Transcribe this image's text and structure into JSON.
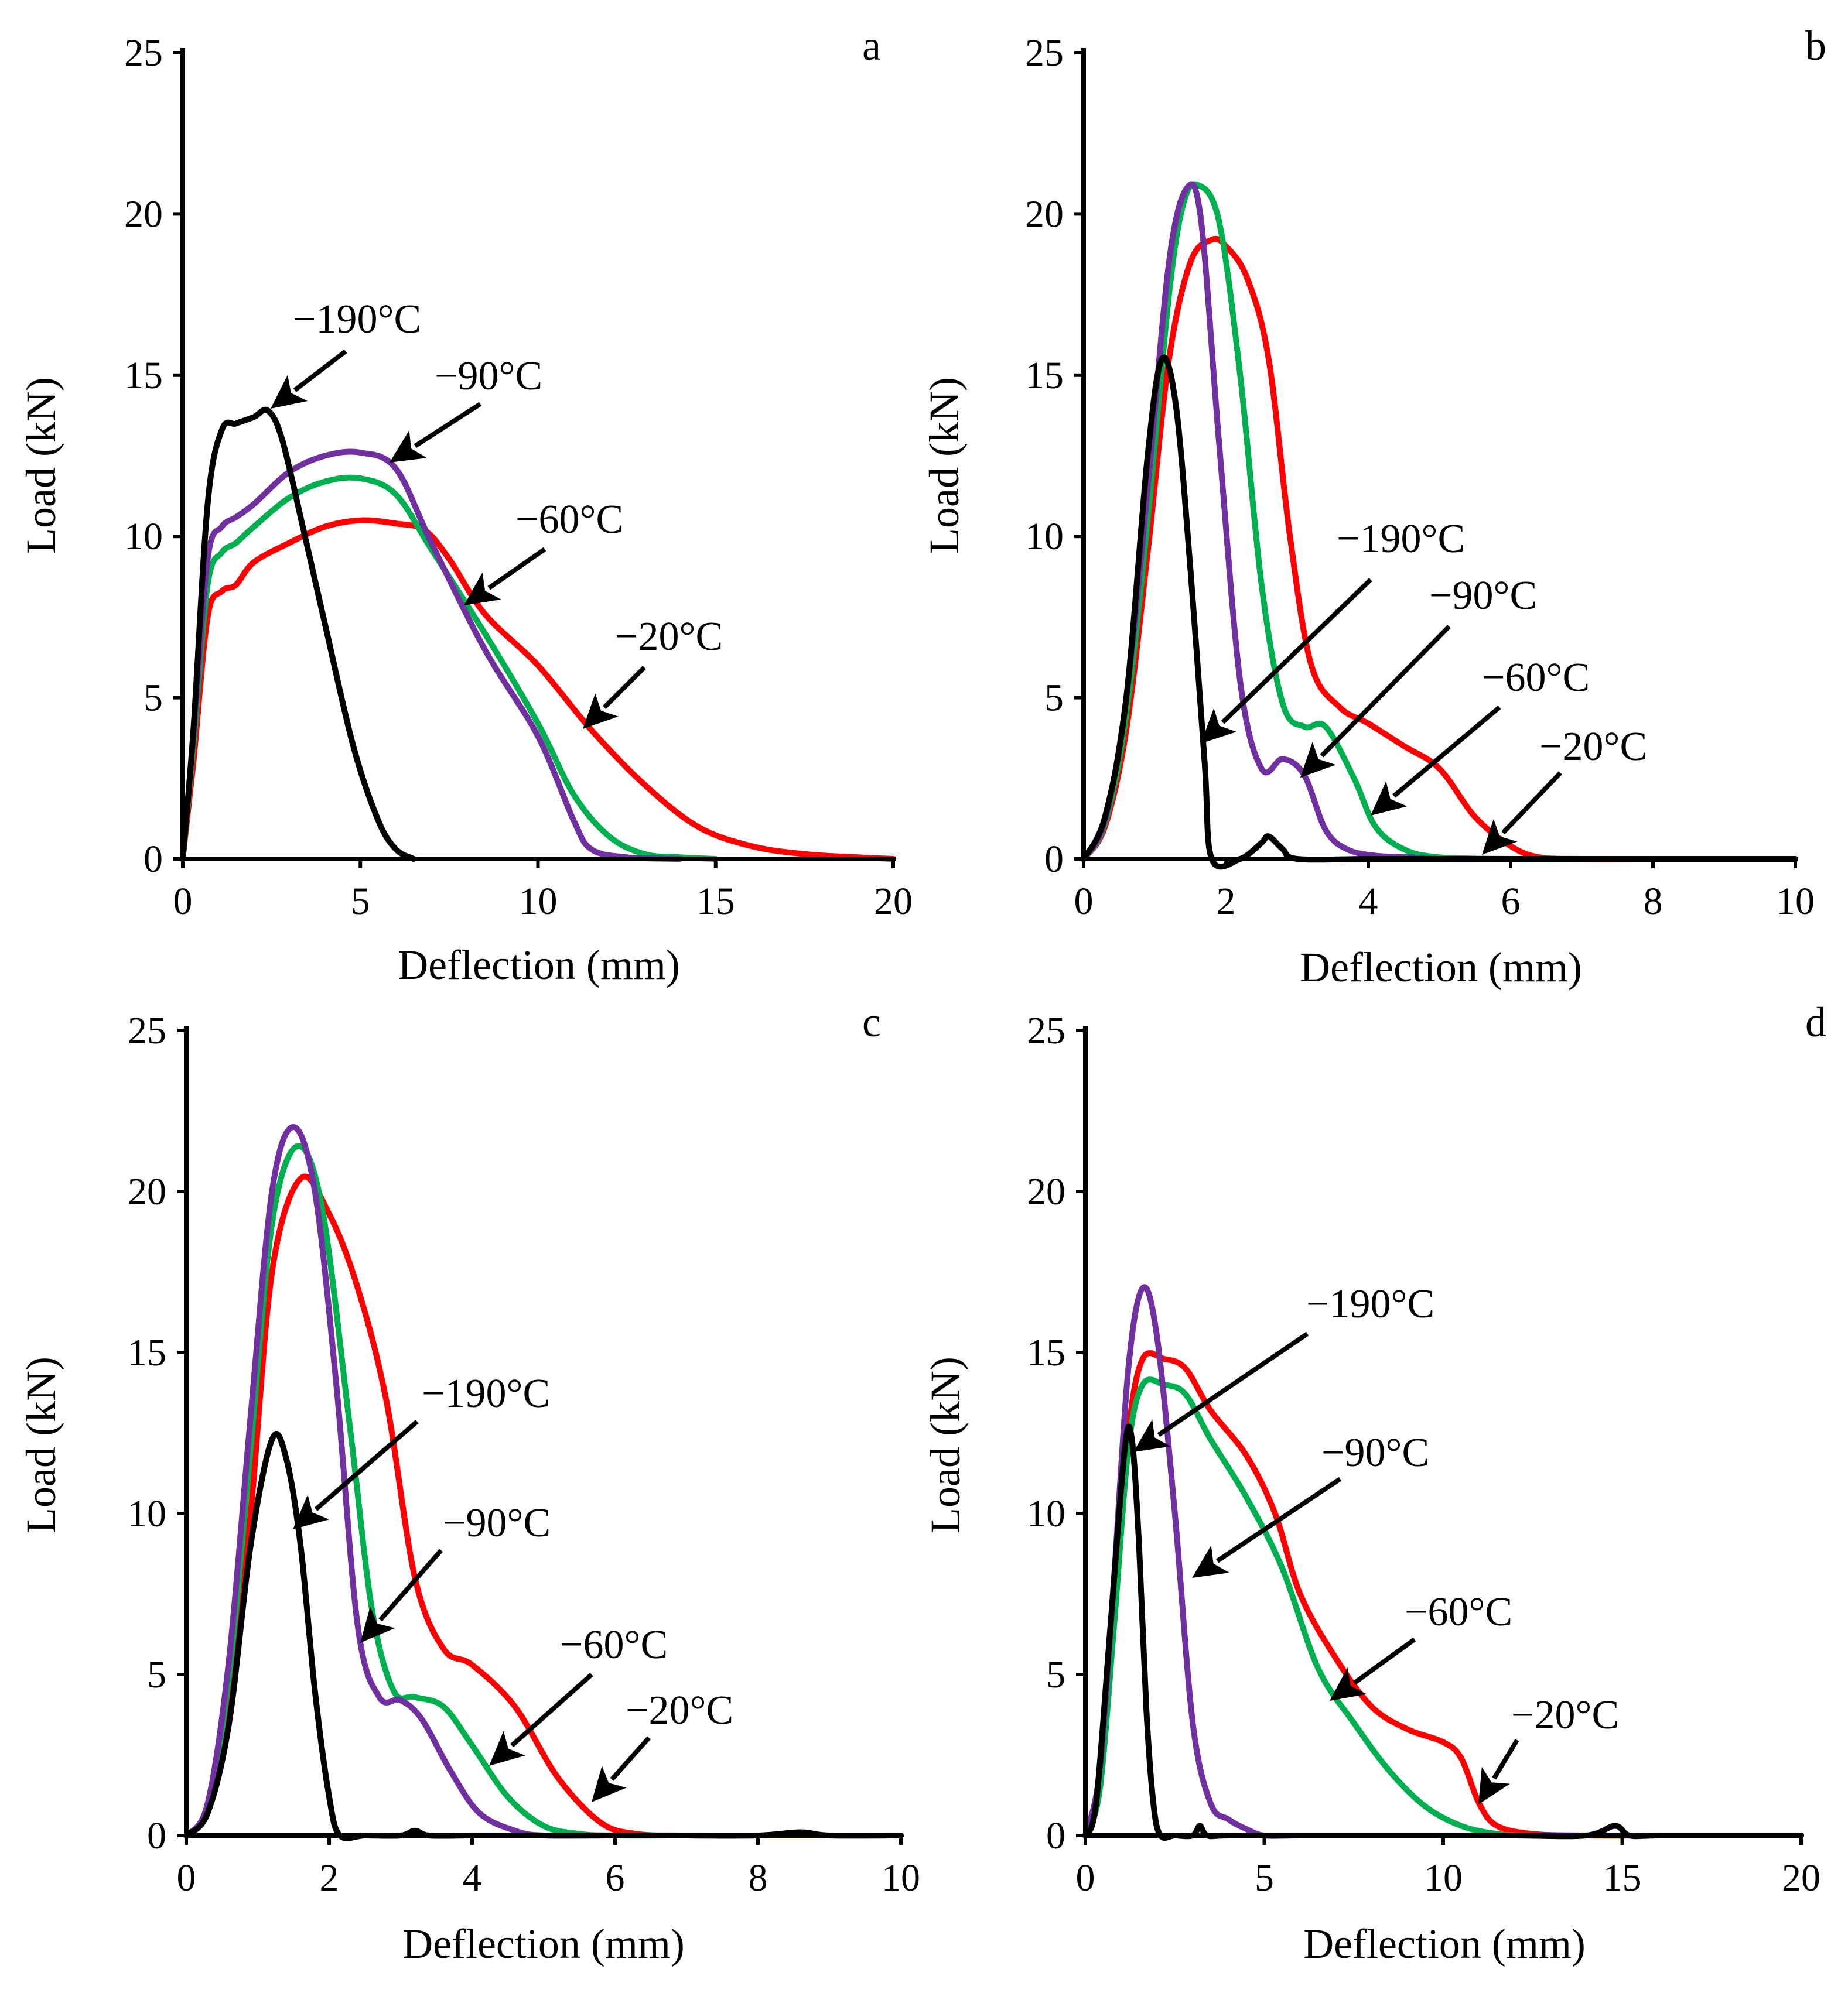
{
  "chart_data": [
    {
      "panel": "a",
      "type": "line",
      "xlabel": "Deflection (mm)",
      "ylabel": "Load (kN)",
      "xlim": [
        0,
        20
      ],
      "ylim": [
        0,
        25
      ],
      "xticks": [
        0,
        5,
        10,
        15,
        20
      ],
      "yticks": [
        0,
        5,
        10,
        15,
        20,
        25
      ],
      "grid": false,
      "series": [
        {
          "name": "−20°C",
          "color": "#ff0000",
          "x": [
            0,
            0.3,
            0.7,
            1.1,
            1.5,
            2,
            3,
            4,
            5,
            6,
            6.8,
            7.5,
            8.5,
            10,
            11.5,
            13,
            14.5,
            16,
            17.5,
            19,
            20
          ],
          "y": [
            0,
            3,
            7.5,
            8.3,
            8.5,
            9.2,
            9.8,
            10.3,
            10.5,
            10.4,
            10.2,
            9.3,
            7.6,
            6,
            4,
            2.3,
            1,
            0.4,
            0.15,
            0.05,
            0
          ]
        },
        {
          "name": "−60°C",
          "color": "#00b050",
          "x": [
            0,
            0.3,
            0.7,
            1.1,
            1.5,
            2,
            3,
            4,
            5,
            6,
            7,
            8.5,
            10,
            11,
            12,
            13,
            14,
            15
          ],
          "y": [
            0,
            3.5,
            8.5,
            9.5,
            9.8,
            10.3,
            11.2,
            11.7,
            11.8,
            11.3,
            9.6,
            7,
            4.2,
            2,
            0.7,
            0.15,
            0.05,
            0
          ]
        },
        {
          "name": "−90°C",
          "color": "#7030a0",
          "x": [
            0,
            0.3,
            0.7,
            1.1,
            1.5,
            2,
            3,
            4,
            5,
            6,
            7,
            8.5,
            10,
            11,
            11.5,
            12.5,
            14
          ],
          "y": [
            0,
            3.8,
            9.3,
            10.3,
            10.6,
            11,
            12,
            12.5,
            12.6,
            12.1,
            9.8,
            6.5,
            3.8,
            1.2,
            0.3,
            0.05,
            0
          ]
        },
        {
          "name": "−190°C",
          "color": "#000000",
          "x": [
            0,
            0.3,
            0.7,
            1.1,
            1.5,
            2,
            2.4,
            2.8,
            3.4,
            4,
            4.8,
            5.5,
            6,
            6.5
          ],
          "y": [
            0,
            4,
            11,
            13.3,
            13.5,
            13.7,
            13.9,
            13,
            10.2,
            7.3,
            3.5,
            1.2,
            0.3,
            0
          ]
        }
      ],
      "annotations": [
        "−190°C",
        "−90°C",
        "−60°C",
        "−20°C"
      ]
    },
    {
      "panel": "b",
      "type": "line",
      "xlabel": "Deflection (mm)",
      "ylabel": "Load (kN)",
      "xlim": [
        0,
        10
      ],
      "ylim": [
        0,
        25
      ],
      "xticks": [
        0,
        2,
        4,
        6,
        8,
        10
      ],
      "yticks": [
        0,
        5,
        10,
        15,
        20,
        25
      ],
      "grid": false,
      "series": [
        {
          "name": "−20°C",
          "color": "#ff0000",
          "x": [
            0,
            0.3,
            0.6,
            0.9,
            1.2,
            1.5,
            1.8,
            2,
            2.3,
            2.6,
            2.9,
            3.2,
            3.6,
            4,
            4.5,
            5,
            5.5,
            6,
            6.4,
            7,
            8,
            9,
            10
          ],
          "y": [
            0,
            1,
            4,
            9.5,
            15.5,
            18.5,
            19.2,
            19,
            18,
            15.5,
            10,
            6,
            4.7,
            4.2,
            3.5,
            2.8,
            1.3,
            0.4,
            0.05,
            0,
            0,
            0,
            0
          ]
        },
        {
          "name": "−60°C",
          "color": "#00b050",
          "x": [
            0,
            0.3,
            0.6,
            0.9,
            1.2,
            1.4,
            1.6,
            1.9,
            2.2,
            2.5,
            2.8,
            3.1,
            3.4,
            3.8,
            4.1,
            4.5,
            5,
            6,
            7,
            8,
            9,
            10
          ],
          "y": [
            0,
            1.1,
            4.5,
            10.5,
            17.5,
            20.3,
            20.9,
            19.8,
            15,
            8.5,
            4.8,
            4.1,
            4.1,
            2.5,
            1,
            0.3,
            0.05,
            0,
            0,
            0,
            0,
            0
          ]
        },
        {
          "name": "−90°C",
          "color": "#7030a0",
          "x": [
            0,
            0.3,
            0.6,
            0.9,
            1.2,
            1.45,
            1.65,
            1.9,
            2.2,
            2.5,
            2.8,
            3.1,
            3.4,
            3.7,
            4.1,
            4.6,
            5,
            6,
            7,
            8,
            9,
            10
          ],
          "y": [
            0,
            1.2,
            5,
            11.5,
            18.5,
            20.8,
            19.8,
            13,
            5.5,
            2.8,
            3.1,
            2.6,
            0.9,
            0.3,
            0.1,
            0.05,
            0,
            0,
            0,
            0,
            0,
            0
          ]
        },
        {
          "name": "−190°C",
          "color": "#000000",
          "x": [
            0,
            0.3,
            0.6,
            0.9,
            1.1,
            1.3,
            1.5,
            1.7,
            1.8,
            2.2,
            2.5,
            2.6,
            2.8,
            3,
            4,
            5,
            6,
            7,
            8,
            9,
            10
          ],
          "y": [
            0,
            1.3,
            5,
            12.5,
            15.5,
            14,
            9,
            3,
            0,
            0,
            0.5,
            0.7,
            0.3,
            0,
            0,
            0,
            0,
            0,
            0,
            0,
            0
          ]
        }
      ],
      "annotations": [
        "−190°C",
        "−90°C",
        "−60°C",
        "−20°C"
      ]
    },
    {
      "panel": "c",
      "type": "line",
      "xlabel": "Deflection (mm)",
      "ylabel": "Load (kN)",
      "xlim": [
        0,
        10
      ],
      "ylim": [
        0,
        25
      ],
      "xticks": [
        0,
        2,
        4,
        6,
        8,
        10
      ],
      "yticks": [
        0,
        5,
        10,
        15,
        20,
        25
      ],
      "grid": false,
      "series": [
        {
          "name": "−20°C",
          "color": "#ff0000",
          "x": [
            0,
            0.3,
            0.6,
            0.9,
            1.2,
            1.6,
            2,
            2.4,
            2.8,
            3.2,
            3.6,
            4,
            4.6,
            5.2,
            5.8,
            6.3,
            7,
            8,
            9,
            10
          ],
          "y": [
            0,
            0.8,
            4,
            10,
            17.5,
            20.4,
            19.3,
            17,
            13.5,
            8,
            5.8,
            5.3,
            4,
            1.8,
            0.4,
            0.05,
            0,
            0,
            0,
            0
          ]
        },
        {
          "name": "−60°C",
          "color": "#00b050",
          "x": [
            0,
            0.3,
            0.6,
            0.9,
            1.2,
            1.55,
            1.9,
            2.3,
            2.6,
            2.9,
            3.2,
            3.6,
            4,
            4.5,
            5,
            5.5,
            6,
            7,
            8,
            9,
            10
          ],
          "y": [
            0,
            0.9,
            5,
            12,
            19,
            21.4,
            19.5,
            12.5,
            7,
            4.5,
            4.3,
            4,
            2.8,
            1.2,
            0.3,
            0.05,
            0,
            0,
            0,
            0,
            0
          ]
        },
        {
          "name": "−90°C",
          "color": "#7030a0",
          "x": [
            0,
            0.3,
            0.6,
            0.9,
            1.2,
            1.5,
            1.8,
            2.1,
            2.4,
            2.7,
            3,
            3.3,
            3.7,
            4.1,
            4.6,
            5,
            6,
            7,
            8,
            9,
            10
          ],
          "y": [
            0,
            1,
            5.5,
            13,
            20,
            22,
            20,
            14,
            6.5,
            4.3,
            4.2,
            3.6,
            2,
            0.7,
            0.15,
            0,
            0,
            0,
            0,
            0,
            0
          ]
        },
        {
          "name": "−190°C",
          "color": "#000000",
          "x": [
            0,
            0.3,
            0.6,
            0.9,
            1.2,
            1.4,
            1.6,
            1.8,
            2,
            2.15,
            2.5,
            3,
            3.2,
            3.4,
            4,
            5,
            6,
            7,
            8,
            8.6,
            9,
            10
          ],
          "y": [
            0,
            0.7,
            3.5,
            9,
            12.3,
            11.7,
            9,
            4.5,
            1.2,
            0,
            0,
            0,
            0.15,
            0,
            0,
            0,
            0,
            0,
            0,
            0.1,
            0,
            0
          ]
        }
      ],
      "annotations": [
        "−190°C",
        "−90°C",
        "−60°C",
        "−20°C"
      ]
    },
    {
      "panel": "d",
      "type": "line",
      "xlabel": "Deflection (mm)",
      "ylabel": "Load (kN)",
      "xlim": [
        0,
        20
      ],
      "ylim": [
        0,
        25
      ],
      "xticks": [
        0,
        5,
        10,
        15,
        20
      ],
      "yticks": [
        0,
        5,
        10,
        15,
        20,
        25
      ],
      "grid": false,
      "series": [
        {
          "name": "−20°C",
          "color": "#ff0000",
          "x": [
            0,
            0.4,
            0.8,
            1.2,
            1.6,
            2.2,
            2.8,
            3.5,
            4.5,
            5.3,
            6,
            7,
            8,
            9,
            10,
            10.5,
            11,
            11.5,
            12.5,
            14,
            16,
            18,
            20
          ],
          "y": [
            0,
            1.5,
            7,
            12.5,
            14.8,
            14.8,
            14.5,
            13.2,
            11.8,
            10,
            7.5,
            5.5,
            4,
            3.3,
            2.9,
            2.4,
            1,
            0.3,
            0.05,
            0,
            0,
            0,
            0
          ]
        },
        {
          "name": "−60°C",
          "color": "#00b050",
          "x": [
            0,
            0.4,
            0.8,
            1.2,
            1.6,
            2.2,
            2.8,
            3.5,
            4.5,
            5.5,
            6.5,
            7.5,
            8.5,
            9.5,
            10.5,
            11.5,
            12.5,
            14,
            16,
            18,
            20
          ],
          "y": [
            0,
            1.4,
            6.5,
            12,
            14,
            14,
            13.7,
            12.3,
            10.5,
            8.3,
            5.2,
            3.5,
            2,
            0.9,
            0.3,
            0.05,
            0,
            0,
            0,
            0,
            0
          ]
        },
        {
          "name": "−90°C",
          "color": "#7030a0",
          "x": [
            0,
            0.4,
            0.8,
            1.2,
            1.6,
            2,
            2.5,
            3,
            3.5,
            4,
            4.5,
            5,
            6,
            8,
            10,
            12,
            14,
            16,
            18,
            20
          ],
          "y": [
            0,
            2,
            8,
            14.5,
            17,
            15.5,
            10,
            3.5,
            1,
            0.5,
            0.2,
            0,
            0,
            0,
            0,
            0,
            0,
            0,
            0,
            0
          ]
        },
        {
          "name": "−190°C",
          "color": "#000000",
          "x": [
            0,
            0.3,
            0.7,
            1.1,
            1.3,
            1.5,
            1.7,
            1.9,
            2.1,
            2.5,
            3,
            3.2,
            3.4,
            4,
            6,
            8,
            10,
            12,
            14,
            14.8,
            15.2,
            16,
            18,
            20
          ],
          "y": [
            0,
            1,
            6.5,
            12,
            12.3,
            9,
            4,
            1,
            0,
            0,
            0,
            0.3,
            0,
            0,
            0,
            0,
            0,
            0,
            0,
            0.3,
            0,
            0,
            0,
            0
          ]
        }
      ],
      "annotations": [
        "−190°C",
        "−90°C",
        "−60°C",
        "−20°C"
      ]
    }
  ]
}
